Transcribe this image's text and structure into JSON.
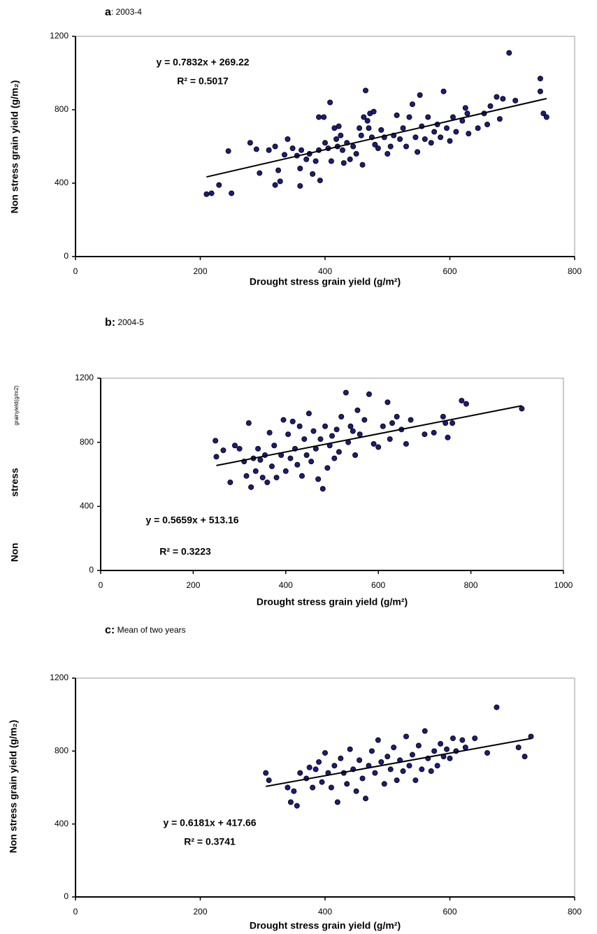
{
  "chart_data": [
    {
      "type": "scatter",
      "panel": "a",
      "subtitle": ": 2003-4",
      "xlabel": "Drought stress grain yield (g/m²)",
      "ylabel": [
        "Non stress grain yield (g/m₂)"
      ],
      "equation": "y = 0.7832x + 269.22",
      "r_squared": "R² = 0.5017",
      "xlim": [
        0,
        800
      ],
      "ylim": [
        0,
        1200
      ],
      "xticks": [
        0,
        200,
        400,
        600,
        800
      ],
      "yticks": [
        0,
        400,
        800,
        1200
      ],
      "color": "#1c1c78",
      "x": [
        210,
        218,
        230,
        245,
        250,
        280,
        290,
        295,
        310,
        320,
        320,
        325,
        328,
        335,
        340,
        348,
        355,
        360,
        360,
        362,
        370,
        375,
        380,
        385,
        390,
        390,
        392,
        398,
        400,
        405,
        408,
        410,
        415,
        418,
        420,
        422,
        425,
        428,
        430,
        435,
        440,
        445,
        450,
        455,
        458,
        460,
        462,
        465,
        468,
        470,
        472,
        475,
        478,
        480,
        485,
        490,
        495,
        500,
        505,
        510,
        515,
        520,
        525,
        530,
        535,
        540,
        545,
        548,
        552,
        555,
        560,
        565,
        570,
        575,
        580,
        585,
        590,
        595,
        600,
        605,
        610,
        620,
        625,
        628,
        630,
        645,
        655,
        660,
        665,
        675,
        680,
        685,
        695,
        705,
        745,
        745,
        750,
        755
      ],
      "y": [
        340,
        345,
        390,
        575,
        345,
        620,
        585,
        455,
        580,
        600,
        390,
        470,
        410,
        555,
        640,
        590,
        550,
        480,
        385,
        580,
        530,
        560,
        450,
        520,
        580,
        760,
        415,
        760,
        620,
        590,
        840,
        520,
        700,
        640,
        600,
        710,
        660,
        580,
        510,
        620,
        530,
        600,
        560,
        700,
        660,
        500,
        760,
        905,
        740,
        700,
        780,
        650,
        790,
        610,
        590,
        690,
        650,
        560,
        600,
        660,
        770,
        640,
        700,
        600,
        760,
        830,
        650,
        570,
        880,
        710,
        640,
        760,
        620,
        680,
        720,
        650,
        900,
        700,
        630,
        760,
        680,
        740,
        810,
        780,
        670,
        700,
        780,
        720,
        820,
        870,
        750,
        860,
        1110,
        850,
        970,
        900,
        780,
        760
      ],
      "trendline": {
        "x": [
          210,
          755
        ],
        "y": [
          434,
          861
        ]
      }
    },
    {
      "type": "scatter",
      "panel": "b:",
      "subtitle": " 2004-5",
      "xlabel": "Drought stress grain yield (g/m²)",
      "ylabel": [
        "Non",
        "stress",
        "grainyield(g/m2)"
      ],
      "equation": "y = 0.5659x + 513.16",
      "r_squared": "R² = 0.3223",
      "xlim": [
        0,
        1000
      ],
      "ylim": [
        0,
        1200
      ],
      "xticks": [
        0,
        200,
        400,
        600,
        800,
        1000
      ],
      "yticks": [
        0,
        400,
        800,
        1200
      ],
      "color": "#1c1c78",
      "x": [
        248,
        250,
        265,
        280,
        290,
        300,
        310,
        315,
        320,
        325,
        330,
        335,
        340,
        345,
        350,
        355,
        360,
        365,
        370,
        375,
        380,
        390,
        395,
        400,
        405,
        410,
        415,
        420,
        425,
        430,
        435,
        440,
        445,
        450,
        455,
        460,
        465,
        470,
        475,
        480,
        485,
        490,
        495,
        500,
        505,
        510,
        515,
        520,
        530,
        535,
        540,
        545,
        550,
        555,
        560,
        570,
        580,
        590,
        600,
        610,
        620,
        625,
        630,
        640,
        650,
        660,
        670,
        700,
        720,
        740,
        745,
        750,
        760,
        780,
        790,
        910
      ],
      "y": [
        810,
        710,
        750,
        550,
        780,
        760,
        680,
        590,
        920,
        520,
        700,
        620,
        760,
        690,
        580,
        720,
        550,
        860,
        650,
        780,
        580,
        720,
        940,
        620,
        850,
        700,
        930,
        760,
        660,
        900,
        590,
        820,
        720,
        980,
        680,
        870,
        760,
        570,
        820,
        510,
        900,
        640,
        780,
        840,
        700,
        880,
        740,
        960,
        1110,
        800,
        900,
        870,
        720,
        1000,
        850,
        940,
        1100,
        790,
        770,
        900,
        1050,
        820,
        920,
        960,
        880,
        790,
        940,
        850,
        860,
        960,
        920,
        830,
        920,
        1060,
        1040,
        1010
      ],
      "trendline": {
        "x": [
          250,
          910
        ],
        "y": [
          655,
          1028
        ]
      }
    },
    {
      "type": "scatter",
      "panel": "c:",
      "subtitle": " Mean of two years",
      "xlabel": "Drought stress grain yield (g/m²)",
      "ylabel": [
        "Non stress grain yield (g/m₂)"
      ],
      "equation": "y = 0.6181x + 417.66",
      "r_squared": "R² = 0.3741",
      "xlim": [
        0,
        800
      ],
      "ylim": [
        0,
        1200
      ],
      "xticks": [
        0,
        200,
        400,
        600,
        800
      ],
      "yticks": [
        0,
        400,
        800,
        1200
      ],
      "color": "#1c1c78",
      "x": [
        305,
        310,
        340,
        345,
        350,
        355,
        360,
        370,
        375,
        380,
        385,
        390,
        395,
        400,
        405,
        410,
        415,
        420,
        425,
        430,
        435,
        440,
        445,
        450,
        455,
        460,
        465,
        470,
        475,
        480,
        485,
        490,
        495,
        500,
        505,
        510,
        515,
        520,
        525,
        530,
        535,
        540,
        545,
        550,
        555,
        560,
        565,
        570,
        575,
        580,
        585,
        590,
        595,
        600,
        605,
        610,
        620,
        625,
        640,
        660,
        675,
        710,
        720,
        730
      ],
      "y": [
        680,
        640,
        600,
        520,
        580,
        500,
        680,
        650,
        710,
        600,
        700,
        740,
        630,
        790,
        680,
        600,
        720,
        520,
        760,
        680,
        620,
        810,
        700,
        580,
        750,
        650,
        540,
        720,
        800,
        680,
        860,
        740,
        620,
        770,
        700,
        820,
        640,
        750,
        690,
        880,
        720,
        780,
        640,
        830,
        700,
        910,
        760,
        690,
        800,
        720,
        840,
        770,
        810,
        760,
        870,
        800,
        860,
        820,
        870,
        790,
        1040,
        820,
        770,
        880
      ],
      "trendline": {
        "x": [
          305,
          730
        ],
        "y": [
          606,
          869
        ]
      }
    }
  ]
}
